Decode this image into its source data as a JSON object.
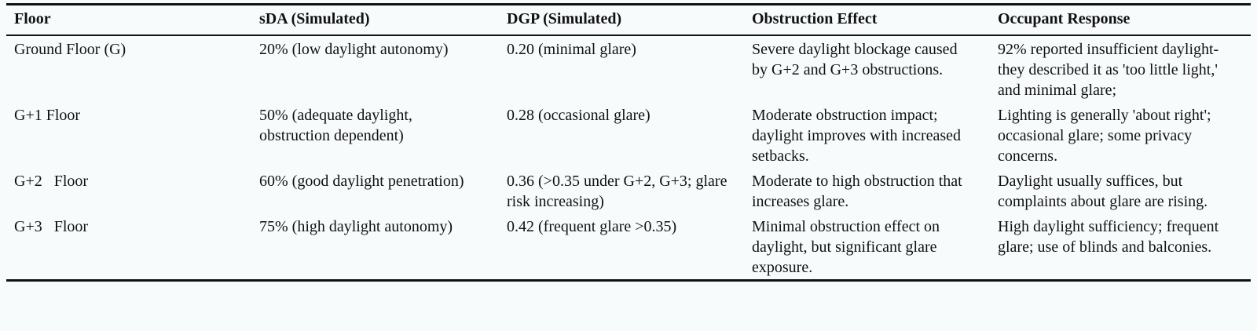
{
  "table": {
    "columns": [
      "Floor",
      "sDA (Simulated)",
      "DGP (Simulated)",
      "Obstruction Effect",
      "Occupant Response"
    ],
    "rows": [
      [
        "Ground Floor (G)",
        "20% (low daylight autonomy)",
        "0.20 (minimal glare)",
        "Severe daylight blockage caused by G+2 and G+3 obstructions.",
        "92% reported insufficient daylight- they described it as 'too little light,' and minimal glare;"
      ],
      [
        "G+1 Floor",
        "50% (adequate daylight, obstruction dependent)",
        "0.28 (occasional glare)",
        "Moderate obstruction impact; daylight improves with increased setbacks.",
        "Lighting is generally 'about right'; occasional glare; some privacy concerns."
      ],
      [
        "G+2   Floor",
        "60% (good daylight penetration)",
        "0.36 (>0.35 under G+2, G+3; glare risk increasing)",
        "Moderate to high obstruction that increases glare.",
        "Daylight usually suffices, but complaints about glare are rising."
      ],
      [
        "G+3   Floor",
        "75% (high daylight autonomy)",
        "0.42 (frequent glare >0.35)",
        "Minimal obstruction effect on daylight, but significant glare exposure.",
        "High daylight sufficiency; frequent glare; use of blinds and balconies."
      ]
    ]
  }
}
